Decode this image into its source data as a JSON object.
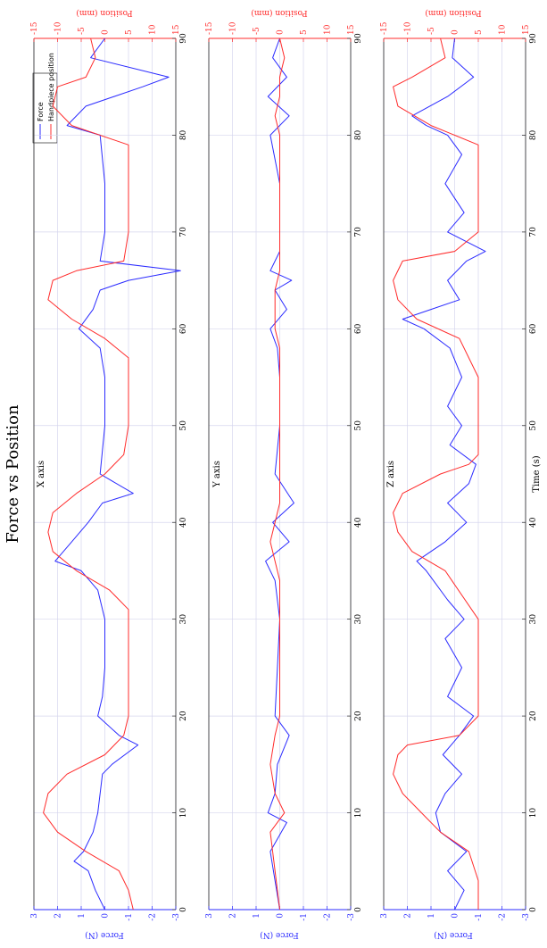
{
  "figure": {
    "title": "Force vs Position",
    "xlabel": "Time (s)",
    "legend": [
      "Force",
      "Handpiece position"
    ]
  },
  "chart_data": [
    {
      "type": "line",
      "title": "X axis",
      "xlabel": "",
      "ylabel": "Force (N)",
      "y2label": "Position (mm)",
      "xlim": [
        0,
        90
      ],
      "ylim": [
        -3,
        3
      ],
      "y2lim": [
        -15,
        15
      ],
      "y2_reversed": true,
      "grid": true,
      "legend_position": "top-right",
      "xticks": [
        0,
        10,
        20,
        30,
        40,
        50,
        60,
        70,
        80,
        90
      ],
      "yticks": [
        -3,
        -2,
        -1,
        0,
        1,
        2,
        3
      ],
      "y2ticks": [
        15,
        10,
        5,
        0,
        -5,
        -10,
        -15
      ],
      "series": [
        {
          "name": "Force",
          "color": "#2b2bff",
          "x": [
            0,
            2,
            4,
            5,
            6,
            8,
            10,
            12,
            14,
            15,
            17,
            18,
            20,
            22,
            25,
            30,
            33,
            35,
            36,
            38,
            40,
            42,
            43,
            45,
            50,
            55,
            58,
            60,
            62,
            64,
            65,
            66,
            67,
            70,
            75,
            80,
            81,
            83,
            85,
            86,
            88,
            90
          ],
          "y": [
            0,
            0.4,
            0.7,
            1.3,
            0.9,
            0.5,
            0.3,
            0.2,
            0.1,
            -0.3,
            -1.4,
            -0.6,
            0.3,
            0.1,
            0,
            0,
            0.3,
            1.0,
            2.1,
            1.4,
            0.7,
            0.1,
            -1.2,
            0.2,
            0,
            0,
            0.2,
            1.1,
            0.5,
            0.2,
            -1.0,
            -3.2,
            0.2,
            0,
            0,
            0.2,
            1.6,
            0.8,
            -1.6,
            -2.7,
            0.6,
            0
          ]
        },
        {
          "name": "Handpiece position",
          "color": "#ff2b2b",
          "x": [
            0,
            2,
            4,
            6,
            8,
            10,
            12,
            14,
            16,
            18,
            20,
            25,
            31,
            33,
            35,
            37,
            39,
            41,
            43,
            45,
            47,
            50,
            55,
            57,
            59,
            61,
            63,
            65,
            66,
            67,
            70,
            75,
            79,
            81,
            83,
            85,
            86,
            88,
            90
          ],
          "y": [
            6,
            5,
            3,
            -4,
            -10,
            -13,
            -12,
            -8,
            0,
            4,
            5,
            5,
            5,
            1,
            -6,
            -11,
            -12,
            -11,
            -6,
            0,
            4,
            5,
            5,
            5,
            0,
            -7,
            -12,
            -11,
            -6,
            4,
            5,
            5,
            5,
            -7,
            -11,
            -10,
            -4,
            -2,
            -3
          ]
        }
      ]
    },
    {
      "type": "line",
      "title": "Y axis",
      "xlabel": "",
      "ylabel": "Force (N)",
      "y2label": "Position (mm)",
      "xlim": [
        0,
        90
      ],
      "ylim": [
        -3,
        3
      ],
      "y2lim": [
        -15,
        15
      ],
      "y2_reversed": true,
      "grid": true,
      "xticks": [
        0,
        10,
        20,
        30,
        40,
        50,
        60,
        70,
        80,
        90
      ],
      "yticks": [
        -3,
        -2,
        -1,
        0,
        1,
        2,
        3
      ],
      "y2ticks": [
        15,
        10,
        5,
        0,
        -5,
        -10,
        -15
      ],
      "series": [
        {
          "name": "Force",
          "color": "#2b2bff",
          "x": [
            0,
            3,
            6,
            9,
            10,
            12,
            15,
            18,
            20,
            25,
            30,
            34,
            36,
            38,
            40,
            42,
            45,
            50,
            55,
            58,
            60,
            62,
            64,
            65,
            66,
            68,
            70,
            75,
            80,
            82,
            84,
            86,
            88,
            90
          ],
          "y": [
            0,
            0.2,
            0.4,
            -0.3,
            0.5,
            0.2,
            0.1,
            -0.4,
            0.2,
            0.1,
            0,
            0.2,
            0.6,
            -0.4,
            0.3,
            -0.6,
            0.2,
            0,
            0,
            0.1,
            0.4,
            -0.3,
            0.2,
            -0.5,
            0.4,
            0,
            0,
            0,
            0.4,
            -0.4,
            0.5,
            -0.3,
            0.3,
            0
          ]
        },
        {
          "name": "Handpiece position",
          "color": "#ff2b2b",
          "x": [
            0,
            4,
            8,
            10,
            12,
            15,
            18,
            20,
            25,
            30,
            34,
            36,
            38,
            40,
            42,
            45,
            50,
            55,
            58,
            60,
            62,
            64,
            66,
            68,
            70,
            75,
            80,
            82,
            84,
            86,
            88,
            90
          ],
          "y": [
            0,
            -1,
            -2,
            1,
            -1,
            -2,
            -1,
            0,
            0,
            0,
            0,
            -1,
            -2,
            -1,
            0,
            0,
            0,
            0,
            0,
            -1,
            -1,
            -1,
            0,
            0,
            0,
            0,
            0,
            -1,
            0,
            0,
            1,
            0
          ]
        }
      ]
    },
    {
      "type": "line",
      "title": "Z axis",
      "xlabel": "Time (s)",
      "ylabel": "Force (N)",
      "y2label": "Position (mm)",
      "xlim": [
        0,
        90
      ],
      "ylim": [
        -3,
        3
      ],
      "y2lim": [
        -15,
        15
      ],
      "y2_reversed": true,
      "grid": true,
      "xticks": [
        0,
        10,
        20,
        30,
        40,
        50,
        60,
        70,
        80,
        90
      ],
      "yticks": [
        -3,
        -2,
        -1,
        0,
        1,
        2,
        3
      ],
      "y2ticks": [
        15,
        10,
        5,
        0,
        -5,
        -10,
        -15
      ],
      "series": [
        {
          "name": "Force",
          "color": "#2b2bff",
          "x": [
            0,
            2,
            4,
            6,
            8,
            10,
            12,
            14,
            16,
            18,
            20,
            22,
            25,
            28,
            30,
            32,
            35,
            36,
            38,
            40,
            42,
            44,
            46,
            48,
            50,
            52,
            55,
            58,
            60,
            61,
            62,
            63,
            65,
            67,
            68,
            70,
            72,
            75,
            78,
            80,
            81,
            82,
            84,
            86,
            88,
            90
          ],
          "y": [
            0,
            -0.4,
            0.3,
            -0.5,
            0.6,
            0.8,
            0.4,
            -0.3,
            0.5,
            -0.2,
            -0.8,
            0.3,
            -0.3,
            0.4,
            -0.4,
            0.3,
            1.2,
            1.6,
            0.4,
            -0.5,
            0.3,
            -0.6,
            -0.9,
            0.2,
            -0.3,
            0.3,
            -0.3,
            0.2,
            1.3,
            2.2,
            1.0,
            -0.2,
            0.3,
            -0.5,
            -1.3,
            0.3,
            -0.4,
            0.4,
            -0.3,
            0.3,
            1.2,
            1.8,
            0.3,
            -0.8,
            0.1,
            0
          ]
        },
        {
          "name": "Handpiece position",
          "color": "#ff2b2b",
          "x": [
            0,
            3,
            6,
            8,
            10,
            12,
            14,
            16,
            17,
            18,
            20,
            22,
            25,
            30,
            35,
            37,
            39,
            41,
            43,
            45,
            46,
            47,
            50,
            55,
            59,
            61,
            63,
            65,
            67,
            68,
            70,
            75,
            79,
            81,
            83,
            85,
            86,
            88,
            90
          ],
          "y": [
            5,
            5,
            3,
            -3,
            -7,
            -11,
            -13,
            -12,
            -10,
            1,
            5,
            5,
            5,
            5,
            -2,
            -9,
            -12,
            -13,
            -11,
            -3,
            3,
            5,
            5,
            5,
            1,
            -8,
            -12,
            -13,
            -11,
            0,
            5,
            5,
            5,
            -5,
            -12,
            -13,
            -9,
            -2,
            -3
          ]
        }
      ]
    }
  ]
}
